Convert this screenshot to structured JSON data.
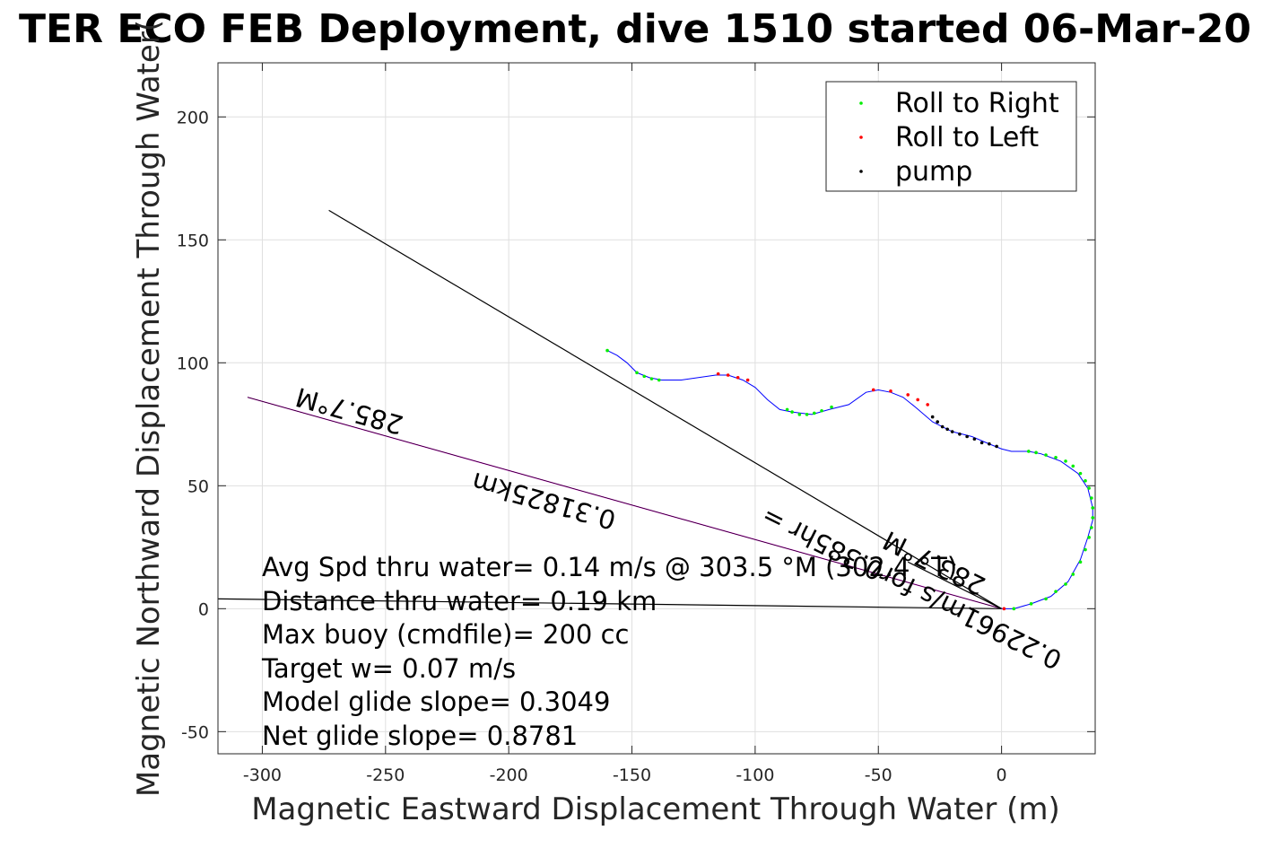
{
  "chart_data": {
    "type": "line",
    "title": "TER ECO FEB Deployment, dive 1510 started 06-Mar-20",
    "xlabel": "Magnetic Eastward Displacement Through Water (m)",
    "ylabel": "Magnetic Northward Displacement Through Water(",
    "xlim": [
      -318,
      38
    ],
    "ylim": [
      -59,
      222
    ],
    "xticks": [
      -300,
      -250,
      -200,
      -150,
      -100,
      -50,
      0
    ],
    "yticks": [
      -50,
      0,
      50,
      100,
      150,
      200
    ],
    "grid": true,
    "legend": {
      "placement": "top-right",
      "entries": [
        {
          "label": "Roll to Right",
          "color": "#00ee00"
        },
        {
          "label": "Roll to Left",
          "color": "#ff0000"
        },
        {
          "label": "pump",
          "color": "#000000"
        }
      ]
    },
    "track": {
      "name": "",
      "color": "#0000ff",
      "x": [
        0,
        5,
        12,
        20,
        27,
        32,
        35,
        37,
        37,
        35,
        31,
        24,
        16,
        11,
        4,
        0,
        -5,
        -12,
        -20,
        -28,
        -35,
        -40,
        -45,
        -50,
        -55,
        -62,
        -70,
        -77,
        -85,
        -90,
        -95,
        -100,
        -105,
        -111,
        -116,
        -130,
        -138,
        -143,
        -148,
        -152,
        -156,
        -160
      ],
      "y": [
        0,
        0,
        2,
        5,
        11,
        20,
        29,
        36,
        41,
        49,
        55,
        60,
        63,
        64,
        64,
        65,
        67,
        70,
        72,
        76,
        82,
        86,
        88,
        89,
        88,
        83,
        81,
        79,
        80,
        81,
        85,
        90,
        93,
        95,
        95,
        93,
        93,
        94,
        96,
        100,
        103,
        105
      ]
    },
    "roll_right": {
      "x": [
        5,
        12,
        18,
        22,
        26,
        29,
        32,
        34,
        35.5,
        36.5,
        37,
        37,
        36.5,
        35.5,
        34,
        32,
        29,
        26,
        22,
        18,
        14,
        11,
        -69,
        -73,
        -76,
        -79,
        -82,
        -85,
        -87,
        -139,
        -142,
        -145,
        -148,
        -160
      ],
      "y": [
        0,
        2,
        4,
        7,
        10,
        14,
        19,
        24,
        29,
        33,
        37,
        41,
        45,
        49,
        52,
        55,
        58,
        60,
        61.5,
        62.5,
        63.5,
        64,
        82,
        80.5,
        79.5,
        79,
        79,
        80,
        81,
        93,
        93.5,
        94.5,
        96,
        105
      ]
    },
    "roll_left": {
      "x": [
        1,
        -30,
        -34,
        -38,
        -45,
        -52,
        -103,
        -107,
        -111,
        -115
      ],
      "y": [
        0,
        83,
        85,
        87,
        88.5,
        89,
        93,
        94,
        95,
        95.5
      ]
    },
    "pump": {
      "x": [
        -2,
        -5,
        -8,
        -11,
        -14,
        -17,
        -20,
        -22,
        -24,
        -26,
        -28
      ],
      "y": [
        66,
        67,
        67.5,
        69,
        70,
        71,
        72,
        73,
        74,
        76,
        78
      ]
    },
    "vectors": [
      {
        "name": "285.7°M",
        "label_line1": "285.7°M",
        "label_line2": "0.31825km",
        "color": "#cc00cc",
        "x": [
          0,
          -306
        ],
        "y": [
          0,
          86
        ]
      },
      {
        "name": "283.7°M",
        "label_line1": "283.7°M",
        "label_line2": "0.22961m/s for0.385hr =",
        "color": "#000000",
        "x": [
          0,
          -38
        ],
        "y": [
          0,
          19
        ]
      },
      {
        "name": "",
        "color": "#000000",
        "x": [
          0,
          -273
        ],
        "y": [
          0,
          162
        ]
      },
      {
        "name": "",
        "color": "#000000",
        "x": [
          0,
          -318
        ],
        "y": [
          0,
          4
        ]
      }
    ],
    "annotations": [
      "Avg Spd thru water=  0.14 m/s @ 303.5 °M (302.4 °T)",
      "Distance thru water=  0.19 km",
      "Max buoy (cmdfile)= 200 cc",
      "Target w= 0.07 m/s",
      "Model glide slope= 0.3049",
      "Net glide slope= 0.8781"
    ]
  }
}
